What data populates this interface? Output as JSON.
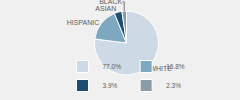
{
  "chart_data": {
    "type": "pie",
    "categories": [
      "WHITE",
      "HISPANIC",
      "ASIAN",
      "BLACK"
    ],
    "values": [
      77.0,
      16.8,
      3.9,
      2.3
    ],
    "value_labels": [
      "77.0%",
      "16.8%",
      "3.9%",
      "2.3%"
    ],
    "colors": [
      "#cdd9e5",
      "#7da8c0",
      "#1e4d72",
      "#8a9baa"
    ],
    "legend": "bottom"
  }
}
